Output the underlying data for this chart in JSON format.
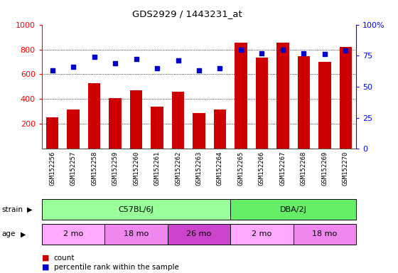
{
  "title": "GDS2929 / 1443231_at",
  "samples": [
    "GSM152256",
    "GSM152257",
    "GSM152258",
    "GSM152259",
    "GSM152260",
    "GSM152261",
    "GSM152262",
    "GSM152263",
    "GSM152264",
    "GSM152265",
    "GSM152266",
    "GSM152267",
    "GSM152268",
    "GSM152269",
    "GSM152270"
  ],
  "counts": [
    255,
    315,
    530,
    410,
    470,
    340,
    460,
    285,
    315,
    855,
    735,
    855,
    745,
    700,
    820
  ],
  "percentiles": [
    63,
    66,
    74,
    69,
    72,
    65,
    71,
    63,
    65,
    80,
    77,
    80,
    77,
    76,
    79
  ],
  "bar_color": "#cc0000",
  "dot_color": "#0000cc",
  "ylim_left": [
    0,
    1000
  ],
  "ylim_right": [
    0,
    100
  ],
  "yticks_left": [
    200,
    400,
    600,
    800,
    1000
  ],
  "yticks_right": [
    0,
    25,
    50,
    75,
    100
  ],
  "ytick_labels_right": [
    "0",
    "25",
    "50",
    "75",
    "100%"
  ],
  "grid_values": [
    200,
    400,
    600,
    800
  ],
  "strain_groups": [
    {
      "label": "C57BL/6J",
      "start": 0,
      "end": 9,
      "color": "#99ff99"
    },
    {
      "label": "DBA/2J",
      "start": 9,
      "end": 15,
      "color": "#66ee66"
    }
  ],
  "age_groups": [
    {
      "label": "2 mo",
      "start": 0,
      "end": 3,
      "color": "#ffaaff"
    },
    {
      "label": "18 mo",
      "start": 3,
      "end": 6,
      "color": "#ee88ee"
    },
    {
      "label": "26 mo",
      "start": 6,
      "end": 9,
      "color": "#cc44cc"
    },
    {
      "label": "2 mo",
      "start": 9,
      "end": 12,
      "color": "#ffaaff"
    },
    {
      "label": "18 mo",
      "start": 12,
      "end": 15,
      "color": "#ee88ee"
    }
  ],
  "xticklabel_bg": "#d0d0d0",
  "plot_bg": "#ffffff"
}
